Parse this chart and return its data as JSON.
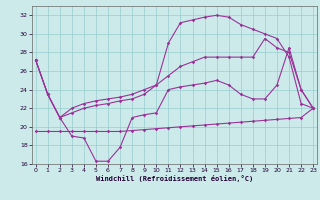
{
  "xlabel": "Windchill (Refroidissement éolien,°C)",
  "xlim": [
    0,
    23
  ],
  "ylim": [
    16,
    33
  ],
  "yticks": [
    16,
    18,
    20,
    22,
    24,
    26,
    28,
    30,
    32
  ],
  "xticks": [
    0,
    1,
    2,
    3,
    4,
    5,
    6,
    7,
    8,
    9,
    10,
    11,
    12,
    13,
    14,
    15,
    16,
    17,
    18,
    19,
    20,
    21,
    22,
    23
  ],
  "background_color": "#cceaea",
  "grid_color": "#99cccc",
  "line_color": "#993399",
  "lines": [
    [
      27.2,
      23.5,
      21.0,
      19.0,
      18.8,
      16.3,
      16.3,
      17.8,
      21.0,
      21.3,
      21.5,
      24.0,
      24.3,
      24.5,
      24.7,
      25.0,
      24.5,
      23.5,
      23.0,
      23.0,
      24.5,
      28.5,
      24.0,
      22.0
    ],
    [
      27.2,
      23.5,
      21.0,
      22.0,
      22.5,
      22.8,
      23.0,
      23.2,
      23.5,
      24.0,
      24.5,
      25.5,
      26.5,
      27.0,
      27.5,
      27.5,
      27.5,
      27.5,
      27.5,
      29.5,
      28.5,
      28.0,
      24.0,
      22.0
    ],
    [
      27.2,
      23.5,
      21.0,
      21.5,
      22.0,
      22.3,
      22.5,
      22.8,
      23.0,
      23.5,
      24.5,
      29.0,
      31.2,
      31.5,
      31.8,
      32.0,
      31.8,
      31.0,
      30.5,
      30.0,
      29.5,
      27.5,
      22.5,
      22.0
    ],
    [
      19.5,
      19.5,
      19.5,
      19.5,
      19.5,
      19.5,
      19.5,
      19.5,
      19.6,
      19.7,
      19.8,
      19.9,
      20.0,
      20.1,
      20.2,
      20.3,
      20.4,
      20.5,
      20.6,
      20.7,
      20.8,
      20.9,
      21.0,
      22.0
    ]
  ]
}
